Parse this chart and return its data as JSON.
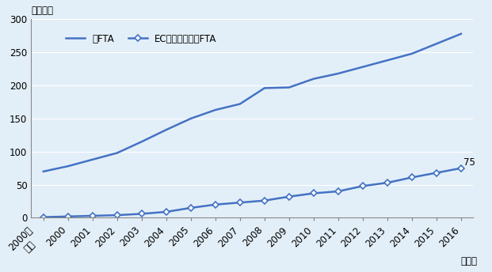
{
  "years": [
    "2000年\n以前",
    "2000",
    "2001",
    "2002",
    "2003",
    "2004",
    "2005",
    "2006",
    "2007",
    "2008",
    "2009",
    "2010",
    "2011",
    "2012",
    "2013",
    "2014",
    "2015",
    "2016"
  ],
  "all_fta": [
    70,
    78,
    88,
    98,
    115,
    133,
    150,
    163,
    172,
    196,
    197,
    210,
    218,
    228,
    238,
    248,
    263,
    278
  ],
  "ec_fta": [
    1,
    2,
    3,
    4,
    6,
    9,
    15,
    20,
    23,
    26,
    32,
    37,
    40,
    48,
    53,
    61,
    68,
    75
  ],
  "line_color": "#4472C4",
  "marker_color": "#4472C4",
  "bg_color": "#E3EFF8",
  "plot_bg": "#E3EFF8",
  "ylim": [
    0,
    300
  ],
  "yticks": [
    0,
    50,
    100,
    150,
    200,
    250,
    300
  ],
  "ylabel": "（件数）",
  "xlabel": "（年）",
  "legend_all": "全FTA",
  "legend_ec": "ECの条文のあるFTA",
  "annotation": "75",
  "tick_fontsize": 8.5
}
